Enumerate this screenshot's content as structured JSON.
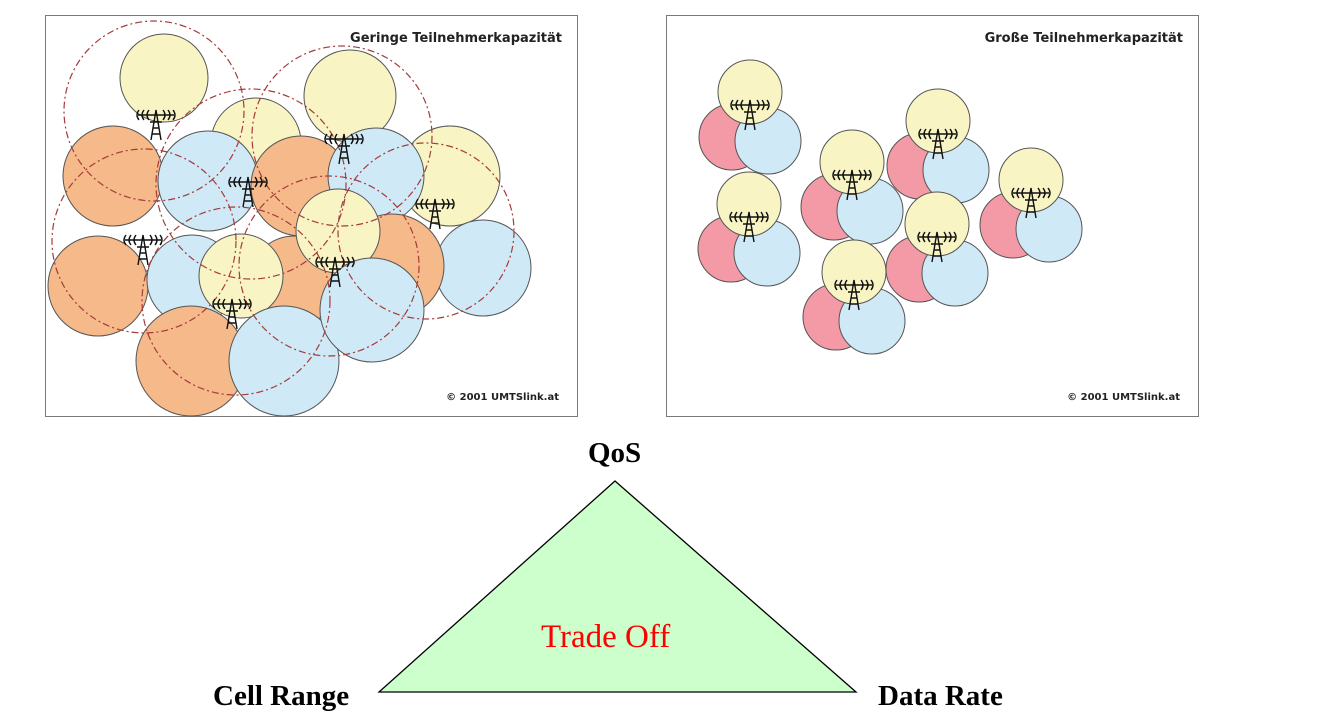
{
  "panels": {
    "left": {
      "title": "Geringe Teilnehmerkapazität",
      "credit": "© 2001 UMTSlink.at"
    },
    "right": {
      "title": "Große Teilnehmerkapazität",
      "credit": "© 2001 UMTSlink.at"
    }
  },
  "triangle": {
    "top_label": "QoS",
    "left_label": "Cell Range",
    "right_label": "Data Rate",
    "center_label": "Trade Off"
  },
  "colors": {
    "cell_orange": "#f5b98a",
    "cell_blue": "#cfe9f7",
    "cell_yellow": "#f8f4c4",
    "cell_red": "#f39aa6",
    "triangle_fill": "#ccffcc",
    "center_text": "#ff0000"
  }
}
